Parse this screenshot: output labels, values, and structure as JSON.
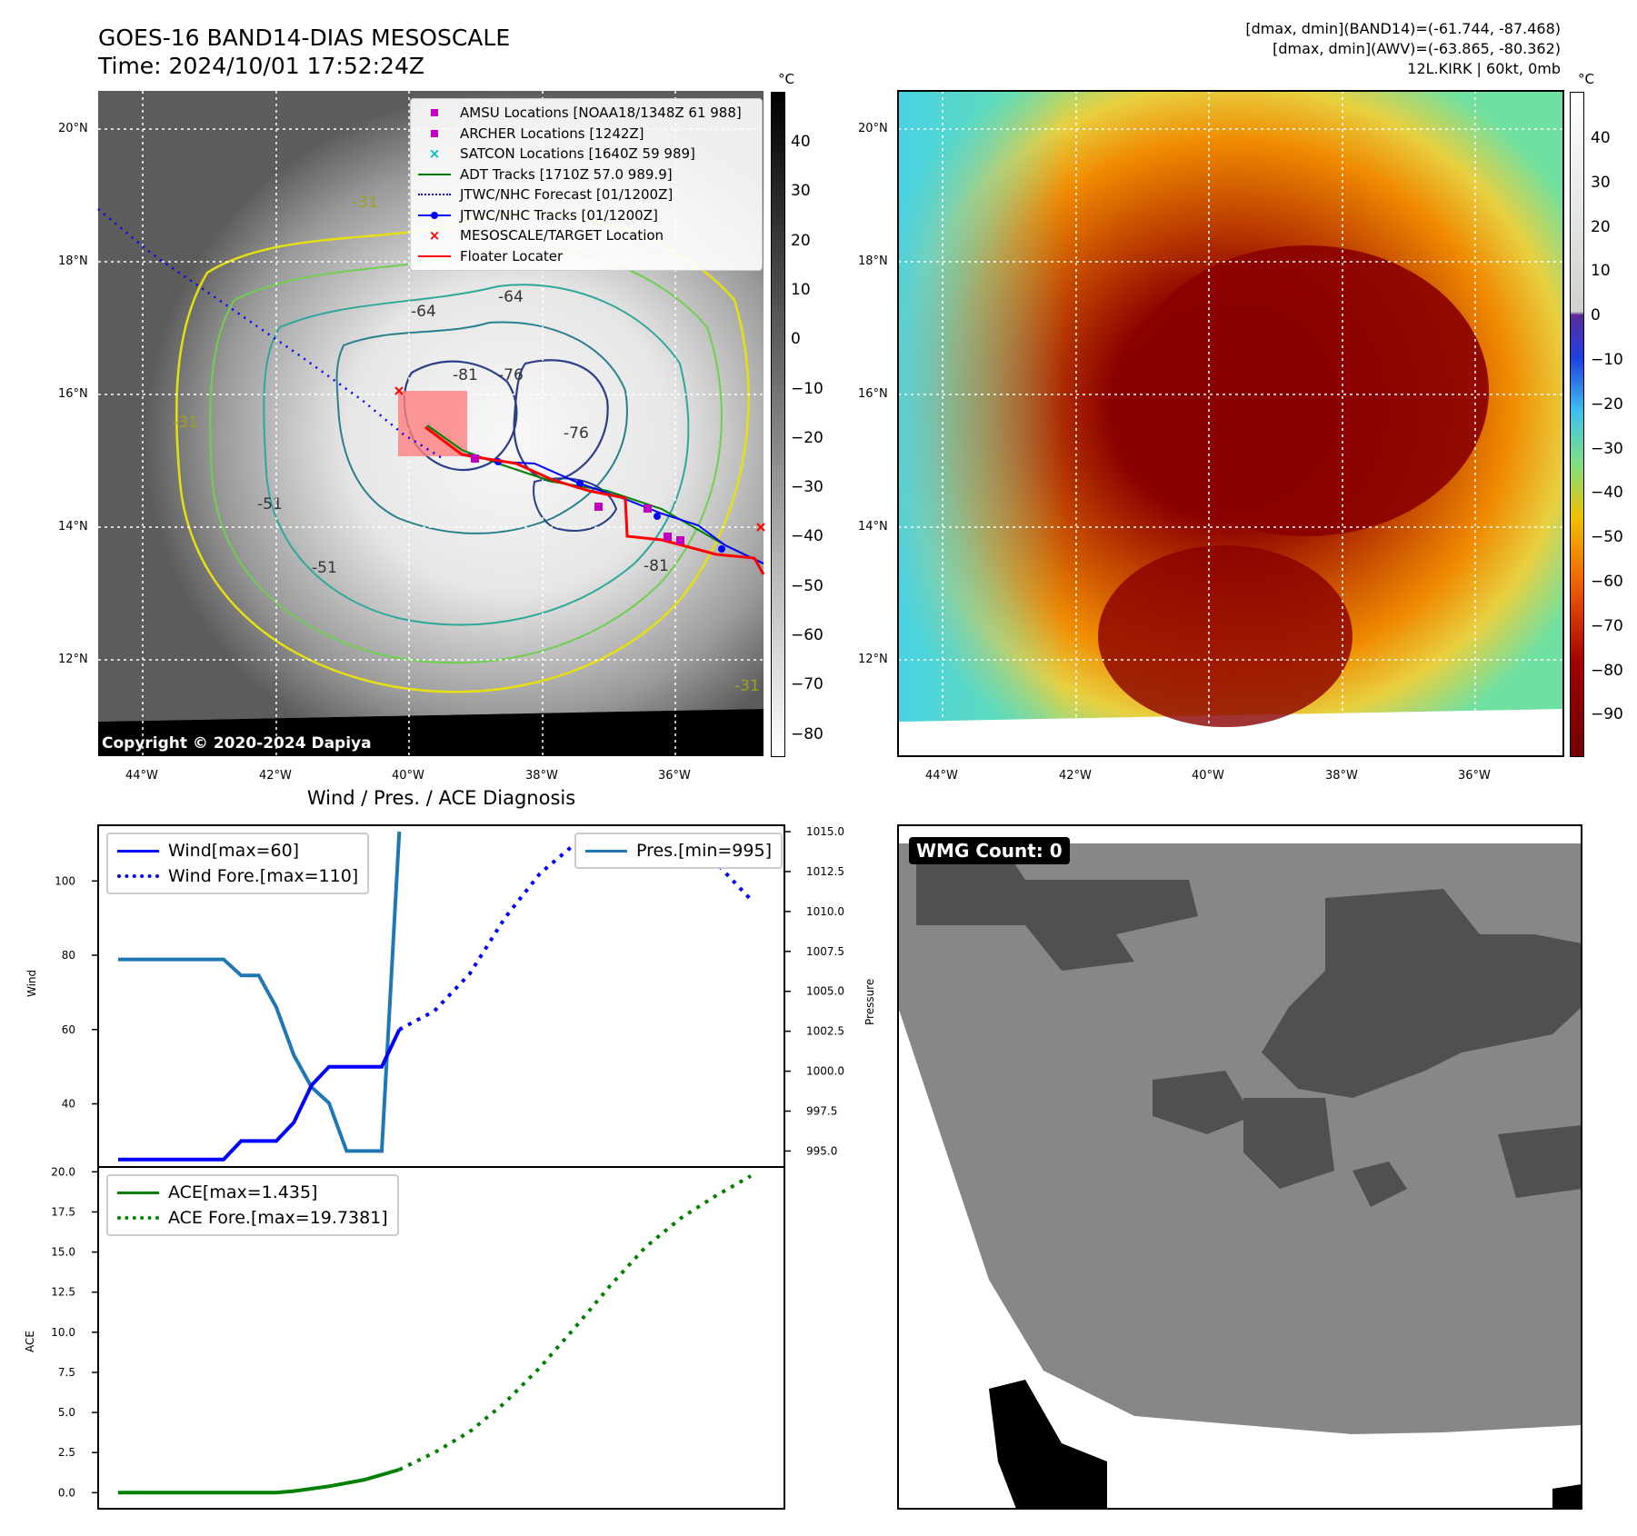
{
  "header": {
    "title_line1": "GOES-16 BAND14-DIAS MESOSCALE",
    "title_line2": "Time: 2024/10/01 17:52:24Z",
    "info_line1": "[dmax, dmin](BAND14)=(-61.744, -87.468)",
    "info_line2": "[dmax, dmin](AWV)=(-63.865, -80.362)",
    "info_line3": "12L.KIRK | 60kt, 0mb"
  },
  "ir_map": {
    "copyright": "Copyright © 2020-2024 Dapiya",
    "lat_labels": [
      "20°N",
      "18°N",
      "16°N",
      "14°N",
      "12°N"
    ],
    "lon_labels": [
      "44°W",
      "42°W",
      "40°W",
      "38°W",
      "36°W"
    ],
    "colorbar_unit": "°C",
    "colorbar_ticks": [
      "40",
      "30",
      "20",
      "10",
      "0",
      "−10",
      "−20",
      "−30",
      "−40",
      "−50",
      "−60",
      "−70",
      "−80"
    ],
    "contour_labels": [
      "-64",
      "-81",
      "-76",
      "-76",
      "-64",
      "-81",
      "-31",
      "-31",
      "-31",
      "-51",
      "-51"
    ],
    "legend": [
      {
        "label": "AMSU Locations [NOAA18/1348Z 61 988]",
        "color": "#c000c0",
        "marker": "square"
      },
      {
        "label": "ARCHER Locations [1242Z]",
        "color": "#c000c0",
        "marker": "square"
      },
      {
        "label": "SATCON Locations [1640Z 59 989]",
        "color": "#00bfbf",
        "marker": "x"
      },
      {
        "label": "ADT Tracks [1710Z 57.0 989.9]",
        "color": "#008000",
        "marker": "line"
      },
      {
        "label": "JTWC/NHC Forecast [01/1200Z]",
        "color": "#0000ff",
        "marker": "dotted"
      },
      {
        "label": "JTWC/NHC Tracks [01/1200Z]",
        "color": "#0000ff",
        "marker": "line-dot"
      },
      {
        "label": "MESOSCALE/TARGET Location",
        "color": "#ff0000",
        "marker": "x"
      },
      {
        "label": "Floater Locater",
        "color": "#ff0000",
        "marker": "line"
      }
    ]
  },
  "wv_map": {
    "lat_labels": [
      "20°N",
      "18°N",
      "16°N",
      "14°N",
      "12°N"
    ],
    "lon_labels": [
      "44°W",
      "42°W",
      "40°W",
      "38°W",
      "36°W"
    ],
    "colorbar_unit": "°C",
    "colorbar_ticks": [
      "40",
      "30",
      "20",
      "10",
      "0",
      "−10",
      "−20",
      "−30",
      "−40",
      "−50",
      "−60",
      "−70",
      "−80",
      "−90"
    ]
  },
  "wmg": {
    "label": "WMG Count: 0"
  },
  "diagnosis": {
    "title": "Wind / Pres. / ACE Diagnosis",
    "wind_ylabel": "Wind",
    "pres_ylabel": "Pressure",
    "ace_ylabel": "ACE",
    "wind_ticks": [
      "100",
      "80",
      "60",
      "40"
    ],
    "pres_ticks": [
      "1015.0",
      "1012.5",
      "1010.0",
      "1007.5",
      "1005.0",
      "1002.5",
      "1000.0",
      "997.5",
      "995.0"
    ],
    "ace_ticks": [
      "20.0",
      "17.5",
      "15.0",
      "12.5",
      "10.0",
      "7.5",
      "5.0",
      "2.5",
      "0.0"
    ],
    "legend_wind": "Wind[max=60]",
    "legend_wind_fore": "Wind Fore.[max=110]",
    "legend_pres": "Pres.[min=995]",
    "legend_ace": "ACE[max=1.435]",
    "legend_ace_fore": "ACE Fore.[max=19.7381]"
  },
  "colors": {
    "wind": "#0000ff",
    "pressure": "#1f77b4",
    "ace": "#008000"
  },
  "chart_data": [
    {
      "type": "line",
      "title": "Wind / Pres. / ACE Diagnosis",
      "ylabel": "Wind",
      "ylim": [
        23,
        115
      ],
      "x_index": [
        0,
        1,
        2,
        3,
        4,
        5,
        6,
        7,
        8,
        9,
        10,
        11,
        12,
        13,
        14,
        15,
        16,
        17,
        18,
        19,
        20,
        21,
        22,
        23,
        24,
        25,
        26,
        27,
        28,
        29,
        30,
        31,
        32,
        33,
        34,
        35,
        36
      ],
      "series": [
        {
          "name": "Wind[max=60]",
          "style": "solid",
          "x": [
            0,
            1,
            2,
            3,
            4,
            5,
            6,
            7,
            8,
            9,
            10,
            11,
            12,
            13,
            14,
            15,
            16
          ],
          "values": [
            25,
            25,
            25,
            25,
            25,
            25,
            25,
            30,
            30,
            30,
            35,
            45,
            50,
            50,
            50,
            50,
            60
          ]
        },
        {
          "name": "Wind Fore.[max=110]",
          "style": "dotted",
          "x": [
            16,
            18,
            20,
            22,
            24,
            26,
            28,
            30,
            32,
            34,
            36
          ],
          "values": [
            60,
            65,
            75,
            90,
            102,
            110,
            110,
            110,
            105,
            105,
            95
          ]
        }
      ]
    },
    {
      "type": "line",
      "ylabel": "Pressure",
      "ylim": [
        994,
        1015.4
      ],
      "series": [
        {
          "name": "Pres.[min=995]",
          "x": [
            0,
            1,
            2,
            3,
            4,
            5,
            6,
            7,
            8,
            9,
            10,
            11,
            12,
            13,
            14,
            15,
            16
          ],
          "values": [
            1007,
            1007,
            1007,
            1007,
            1007,
            1007,
            1007,
            1006,
            1006,
            1004,
            1001,
            999,
            998,
            995,
            995,
            995,
            1015
          ]
        }
      ]
    },
    {
      "type": "line",
      "ylabel": "ACE",
      "ylim": [
        -1,
        20.3
      ],
      "series": [
        {
          "name": "ACE[max=1.435]",
          "style": "solid",
          "x": [
            0,
            2,
            4,
            6,
            8,
            9,
            10,
            12,
            14,
            16
          ],
          "values": [
            0,
            0,
            0,
            0,
            0,
            0,
            0.1,
            0.4,
            0.8,
            1.435
          ]
        },
        {
          "name": "ACE Fore.[max=19.7381]",
          "style": "dotted",
          "x": [
            16,
            18,
            20,
            22,
            24,
            26,
            28,
            30,
            32,
            34,
            36
          ],
          "values": [
            1.435,
            2.5,
            3.8,
            5.6,
            7.8,
            10.3,
            12.9,
            15.3,
            17.1,
            18.5,
            19.7381
          ]
        }
      ]
    }
  ]
}
